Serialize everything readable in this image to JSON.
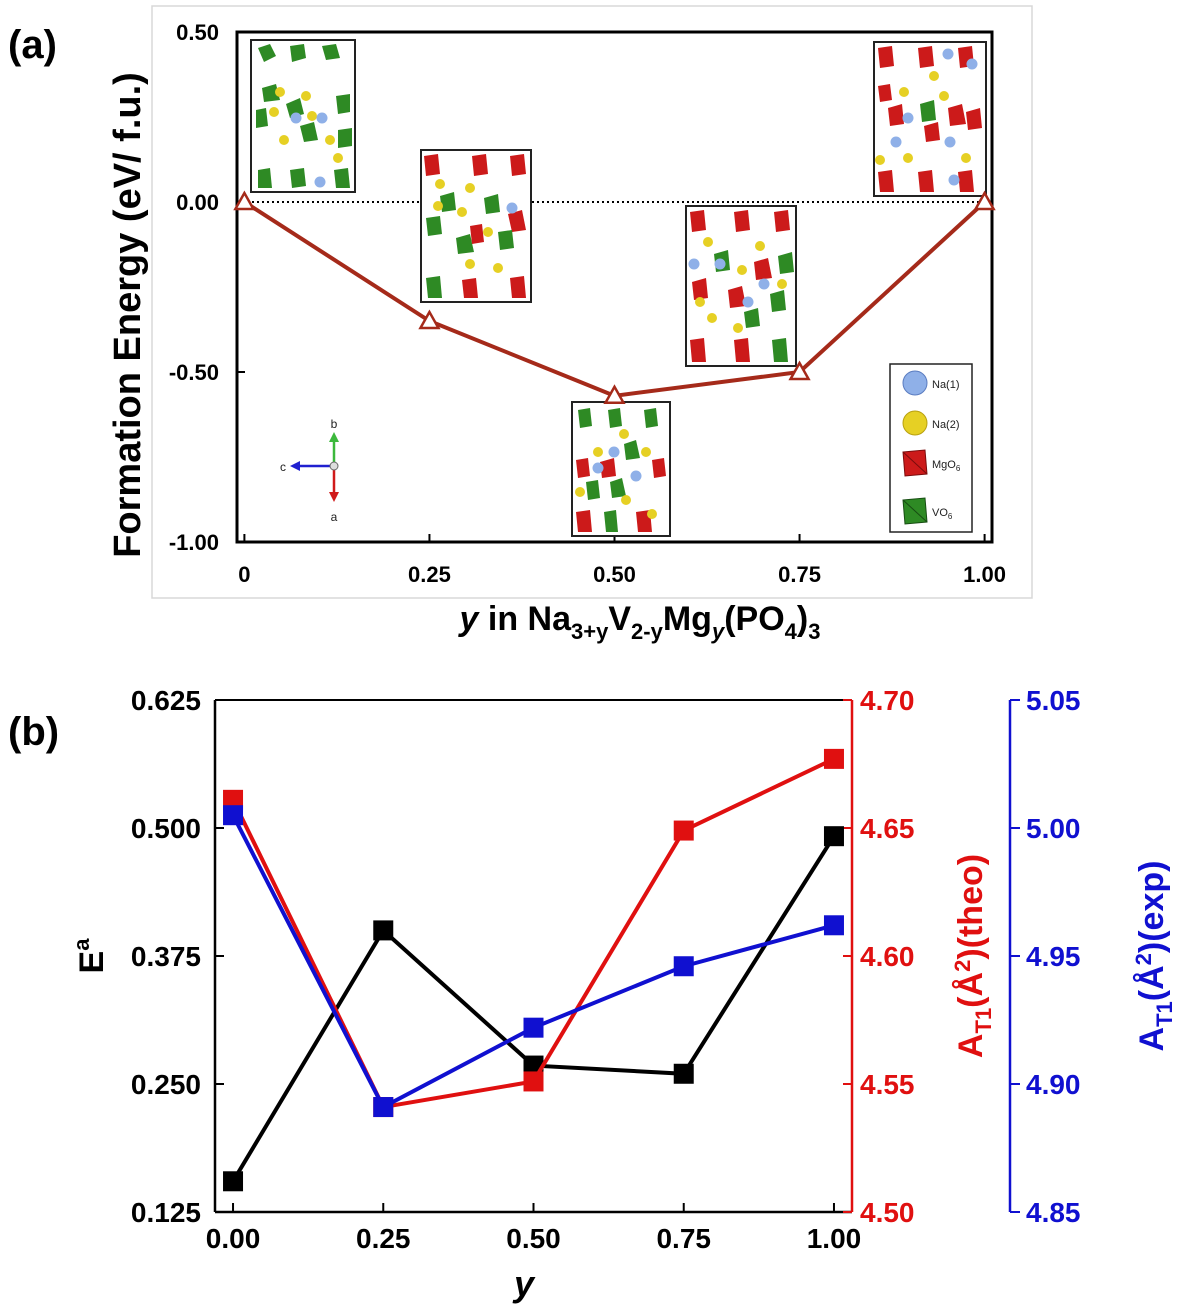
{
  "panels": {
    "a": {
      "label": "(a)"
    },
    "b": {
      "label": "(b)"
    }
  },
  "chart_data": [
    {
      "id": "a",
      "type": "line",
      "ylabel": "Formation Energy (eV/ f.u.)",
      "xlabel": {
        "pre": "y",
        "mid": " in Na",
        "sub1": "3+y",
        "v": "V",
        "sub2": "2-y",
        "mg": "Mg",
        "sub3": "y",
        "po": "(PO",
        "sub4": "4",
        "close": ")",
        "sub5": "3"
      },
      "xlim": [
        -0.01,
        1.01
      ],
      "ylim": [
        -1.0,
        0.5
      ],
      "xticks": [
        0,
        0.25,
        0.5,
        0.75,
        1.0
      ],
      "xtick_labels": [
        "0",
        "0.25",
        "0.50",
        "0.75",
        "1.00"
      ],
      "yticks": [
        0.5,
        0.0,
        -0.5,
        -1.0
      ],
      "ytick_labels": [
        "0.50",
        "0.00",
        "-0.50",
        "-1.00"
      ],
      "reference_line": 0.0,
      "series": [
        {
          "x": [
            0,
            0.25,
            0.5,
            0.75,
            1.0
          ],
          "y": [
            0.0,
            -0.35,
            -0.57,
            -0.5,
            0.0
          ],
          "color": "#a52a1a",
          "marker": "open-triangle"
        }
      ],
      "legend": {
        "placement": "bottom-right",
        "items": [
          {
            "label": "Na(1)",
            "symbol": "blue-sphere",
            "color": "#8fb0e8"
          },
          {
            "label": "Na(2)",
            "symbol": "yellow-sphere",
            "color": "#e6d024"
          },
          {
            "label": "MgO6",
            "symbol": "red-octahedron",
            "color": "#cc1a1a"
          },
          {
            "label": "VO6",
            "symbol": "green-octahedron",
            "color": "#2e8a24"
          }
        ]
      },
      "axes_glyph": {
        "b": "b",
        "c": "c",
        "a": "a"
      }
    },
    {
      "id": "b",
      "type": "line",
      "xlabel": "y",
      "xlim": [
        -0.03,
        1.03
      ],
      "xticks": [
        0,
        0.25,
        0.5,
        0.75,
        1.0
      ],
      "xtick_labels": [
        "0.00",
        "0.25",
        "0.50",
        "0.75",
        "1.00"
      ],
      "y_left": {
        "label": "E",
        "label_sup": "a",
        "lim": [
          0.125,
          0.625
        ],
        "ticks": [
          0.125,
          0.25,
          0.375,
          0.5,
          0.625
        ],
        "tick_labels": [
          "0.125",
          "0.250",
          "0.375",
          "0.500",
          "0.625"
        ],
        "color": "#000000"
      },
      "y_right1": {
        "label": {
          "a": "A",
          "sub": "T1",
          "rest": "(Å",
          "sup": "2",
          "end": ")(theo)"
        },
        "lim": [
          4.5,
          4.7
        ],
        "ticks": [
          4.5,
          4.55,
          4.6,
          4.65,
          4.7
        ],
        "tick_labels": [
          "4.50",
          "4.55",
          "4.60",
          "4.65",
          "4.70"
        ],
        "color": "#e01010"
      },
      "y_right2": {
        "label": {
          "a": "A",
          "sub": "T1",
          "rest": "(Å",
          "sup": "2",
          "end": ")(exp)"
        },
        "lim": [
          4.85,
          5.05
        ],
        "ticks": [
          4.85,
          4.9,
          4.95,
          5.0,
          5.05
        ],
        "tick_labels": [
          "4.85",
          "4.90",
          "4.95",
          "5.00",
          "5.05"
        ],
        "color": "#1010d0"
      },
      "series": [
        {
          "axis": "left",
          "color": "#000000",
          "x": [
            0,
            0.25,
            0.5,
            0.75,
            1.0
          ],
          "y": [
            0.155,
            0.4,
            0.268,
            0.26,
            0.492
          ]
        },
        {
          "axis": "right1",
          "color": "#e01010",
          "x": [
            0,
            0.25,
            0.5,
            0.75,
            1.0
          ],
          "y": [
            4.661,
            4.541,
            4.551,
            4.649,
            4.677
          ]
        },
        {
          "axis": "right2",
          "color": "#1010d0",
          "x": [
            0,
            0.25,
            0.5,
            0.75,
            1.0
          ],
          "y": [
            5.005,
            4.891,
            4.922,
            4.946,
            4.962
          ]
        }
      ]
    }
  ]
}
